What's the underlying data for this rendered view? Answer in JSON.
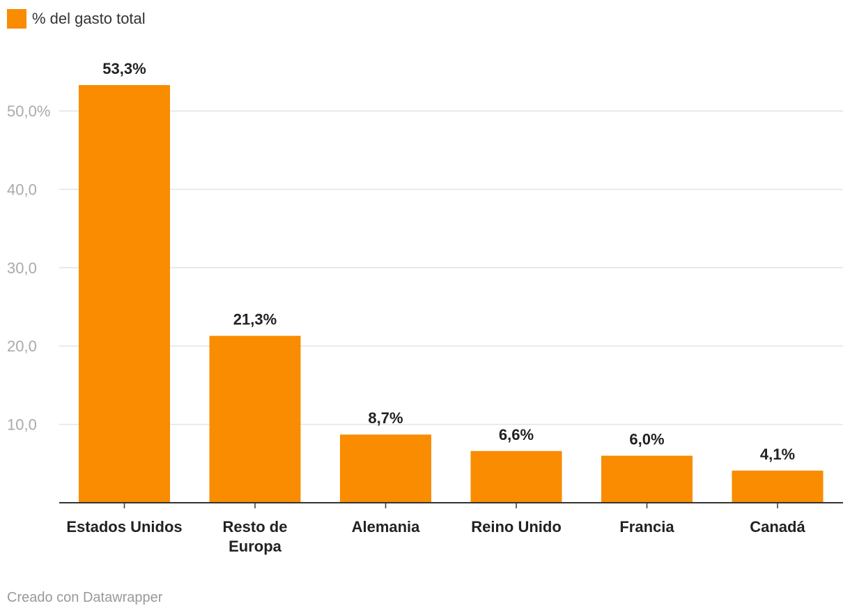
{
  "legend": {
    "label": "% del gasto total",
    "color": "#f98c00"
  },
  "footer": {
    "credit": "Creado con Datawrapper"
  },
  "chart_data": {
    "type": "bar",
    "categories": [
      "Estados Unidos",
      "Resto de Europa",
      "Alemania",
      "Reino Unido",
      "Francia",
      "Canadá"
    ],
    "category_lines": [
      [
        "Estados Unidos"
      ],
      [
        "Resto de",
        "Europa"
      ],
      [
        "Alemania"
      ],
      [
        "Reino Unido"
      ],
      [
        "Francia"
      ],
      [
        "Canadá"
      ]
    ],
    "series": [
      {
        "name": "% del gasto total",
        "values": [
          53.3,
          21.3,
          8.7,
          6.6,
          6.0,
          4.1
        ],
        "value_labels": [
          "53,3%",
          "21,3%",
          "8,7%",
          "6,6%",
          "6,0%",
          "4,1%"
        ],
        "color": "#f98c00"
      }
    ],
    "ylim": [
      0,
      53.3
    ],
    "yticks": [
      10,
      20,
      30,
      40,
      50
    ],
    "ytick_labels": [
      "10,0",
      "20,0",
      "30,0",
      "40,0",
      "50,0%"
    ],
    "grid": true,
    "legend_position": "top-left",
    "colors": {
      "grid": "#e3e3e3",
      "axis": "#333333"
    }
  }
}
